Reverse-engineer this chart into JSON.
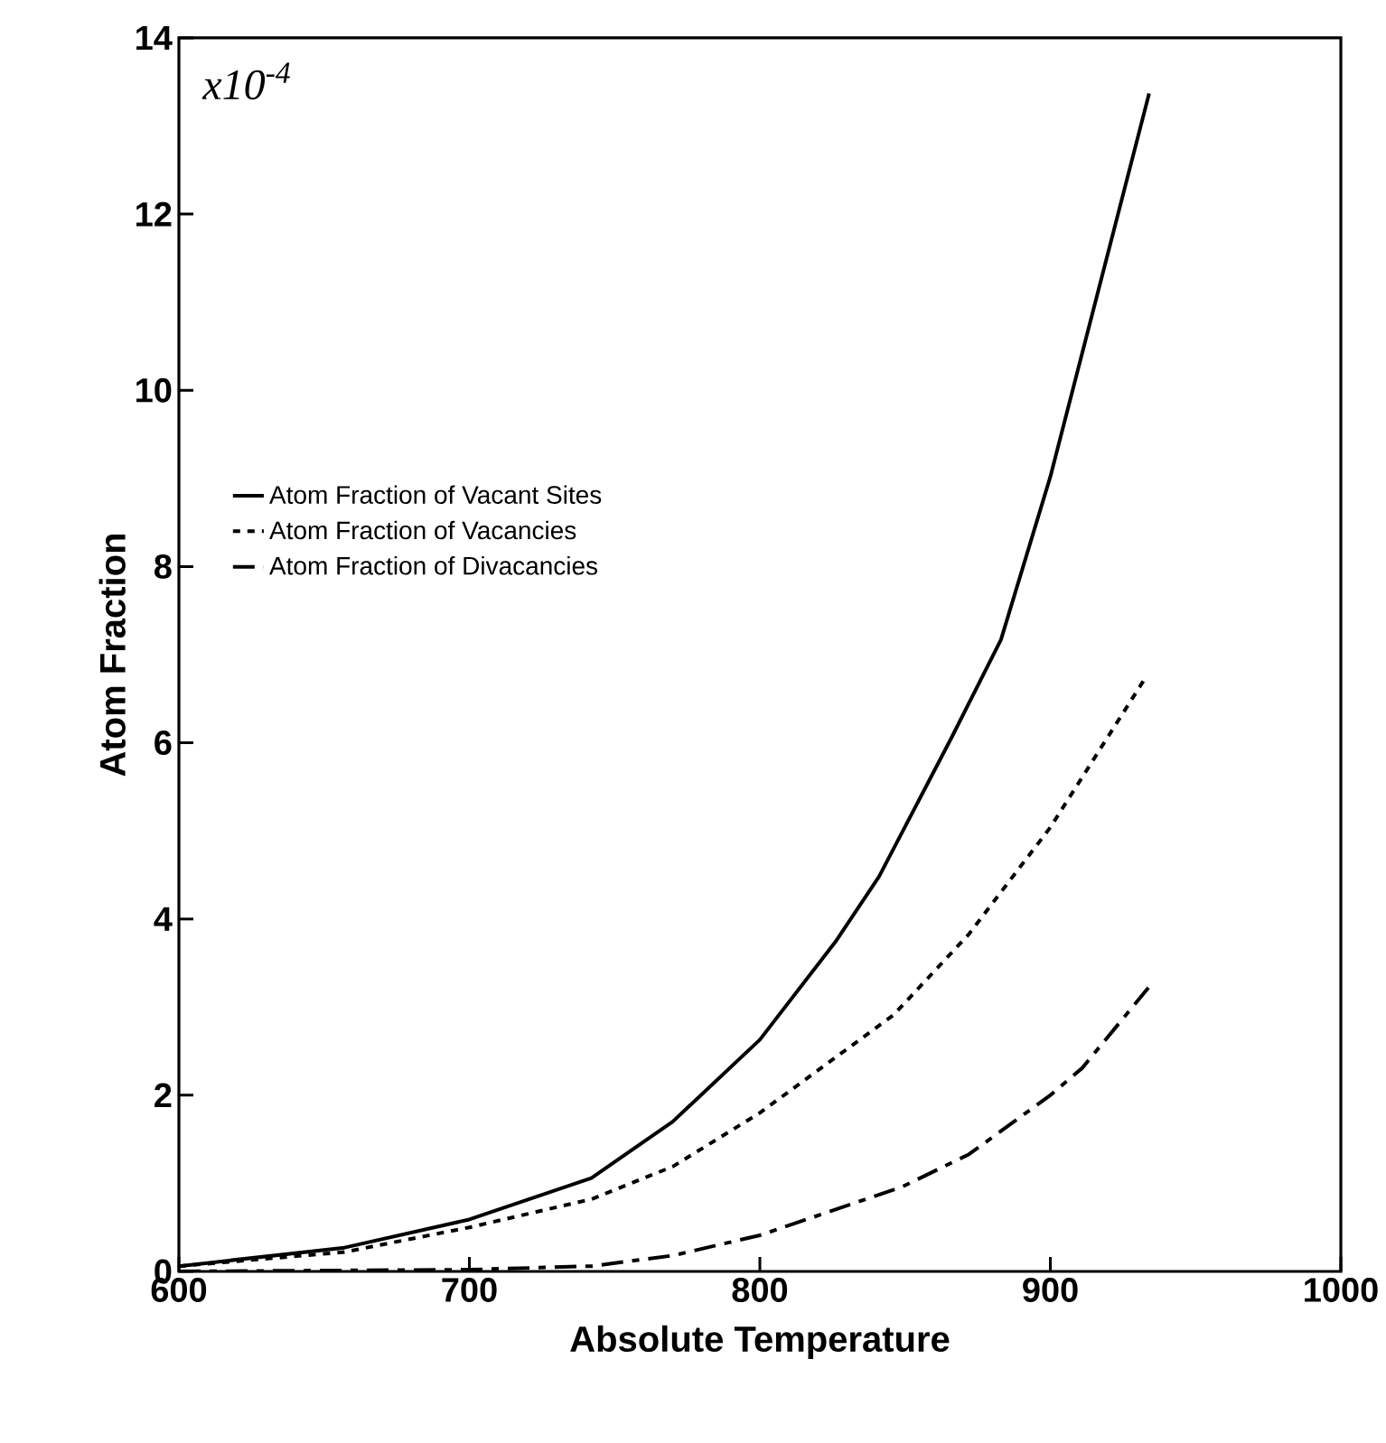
{
  "chart_data": {
    "type": "line",
    "xlabel": "Absolute Temperature",
    "ylabel": "Atom Fraction",
    "annotations": [
      "x10$^{-4}$"
    ],
    "xlim": [
      600,
      1000
    ],
    "xticks": [
      600,
      700,
      800,
      900,
      1000
    ],
    "ylim": [
      0,
      14
    ],
    "yticks": [
      0,
      2,
      4,
      6,
      8,
      10,
      12,
      14
    ],
    "grid": false,
    "legend": "left",
    "marker": "none",
    "series": [
      {
        "name": "Atom Fraction of Vacant Sites",
        "color": "#000000",
        "line_style": "solid",
        "x": [
          600,
          657,
          700,
          742,
          770,
          800,
          826,
          841,
          866,
          883,
          900,
          934
        ],
        "values": [
          0.06,
          0.27,
          0.59,
          1.06,
          1.7,
          2.63,
          3.74,
          4.48,
          6.06,
          7.17,
          9.02,
          13.37
        ]
      },
      {
        "name": "Atom Fraction of Vacancies",
        "color": "#000000",
        "line_style": "dotted",
        "x": [
          600,
          657,
          700,
          742,
          770,
          800,
          846,
          872,
          900,
          932
        ],
        "values": [
          0.06,
          0.22,
          0.5,
          0.82,
          1.19,
          1.8,
          2.91,
          3.83,
          5.04,
          6.7
        ]
      },
      {
        "name": "Atom Fraction of Divacancies",
        "color": "#000000",
        "line_style": "dashed",
        "x": [
          600,
          700,
          742,
          770,
          800,
          849,
          872,
          900,
          911,
          934
        ],
        "values": [
          0.0,
          0.02,
          0.06,
          0.18,
          0.41,
          0.96,
          1.33,
          2.0,
          2.31,
          3.23
        ]
      }
    ]
  }
}
